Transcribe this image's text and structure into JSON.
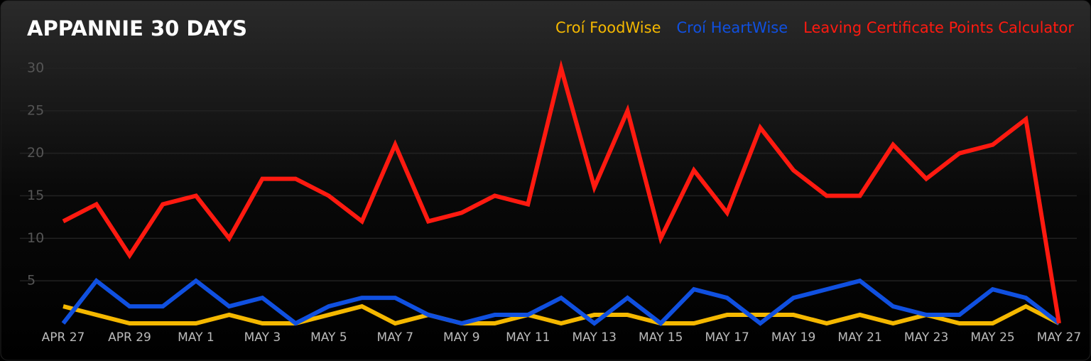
{
  "chart_data": {
    "type": "line",
    "title": "APPANNIE 30 DAYS",
    "categories": [
      "APR 27",
      null,
      "APR 29",
      null,
      "MAY 1",
      null,
      "MAY 3",
      null,
      "MAY 5",
      null,
      "MAY 7",
      null,
      "MAY 9",
      null,
      "MAY 11",
      null,
      "MAY 13",
      null,
      "MAY 15",
      null,
      "MAY 17",
      null,
      "MAY 19",
      null,
      "MAY 21",
      null,
      "MAY 23",
      null,
      "MAY 25",
      null,
      "MAY 27"
    ],
    "series": [
      {
        "name": "Croí FoodWise",
        "color": "#f5b800",
        "values": [
          2,
          1,
          0,
          0,
          0,
          1,
          0,
          0,
          1,
          2,
          0,
          1,
          0,
          0,
          1,
          0,
          1,
          1,
          0,
          0,
          1,
          1,
          1,
          0,
          1,
          0,
          1,
          0,
          0,
          2,
          0
        ]
      },
      {
        "name": "Croí HeartWise",
        "color": "#1050e0",
        "values": [
          0,
          5,
          2,
          2,
          5,
          2,
          3,
          0,
          2,
          3,
          3,
          1,
          0,
          1,
          1,
          3,
          0,
          3,
          0,
          4,
          3,
          0,
          3,
          4,
          5,
          2,
          1,
          1,
          4,
          3,
          0
        ]
      },
      {
        "name": "Leaving Certificate Points Calculator",
        "color": "#ff1a10",
        "values": [
          12,
          14,
          8,
          14,
          15,
          10,
          17,
          17,
          15,
          12,
          21,
          12,
          13,
          15,
          14,
          30,
          16,
          25,
          10,
          18,
          13,
          23,
          18,
          15,
          15,
          21,
          17,
          20,
          21,
          24,
          0
        ]
      }
    ],
    "ylim": [
      0,
      30
    ],
    "yticks": [
      5,
      10,
      15,
      20,
      25,
      30
    ],
    "grid": true,
    "legend": "top-right"
  }
}
